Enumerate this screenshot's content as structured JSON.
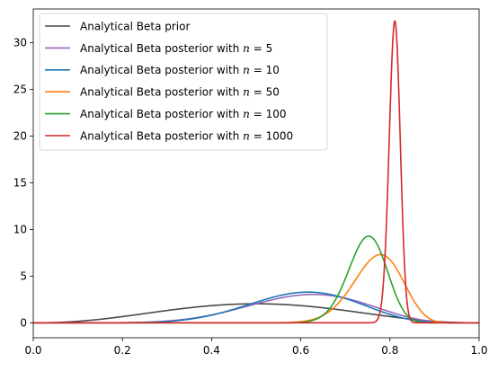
{
  "chart_data": {
    "type": "line",
    "title": "",
    "xlabel": "",
    "ylabel": "",
    "xlim": [
      0,
      1
    ],
    "ylim": [
      -1.6,
      33.6
    ],
    "xticks": [
      0.0,
      0.2,
      0.4,
      0.6,
      0.8,
      1.0
    ],
    "xtick_labels": [
      "0.0",
      "0.2",
      "0.4",
      "0.6",
      "0.8",
      "1.0"
    ],
    "yticks": [
      0,
      5,
      10,
      15,
      20,
      25,
      30
    ],
    "ytick_labels": [
      "0",
      "5",
      "10",
      "15",
      "20",
      "25",
      "30"
    ],
    "grid": false,
    "legend_position": "upper-left",
    "series": [
      {
        "name_prefix": "Analytical Beta prior",
        "n": "",
        "color": "#4a4a4a",
        "alpha": 3.5,
        "beta": 3.5
      },
      {
        "name_prefix": "Analytical Beta posterior with",
        "n": "5",
        "color": "#9467bd",
        "alpha": 8.6,
        "beta": 5.5
      },
      {
        "name_prefix": "Analytical Beta posterior with",
        "n": "10",
        "color": "#1f77b4",
        "alpha": 10.0,
        "beta": 6.6
      },
      {
        "name_prefix": "Analytical Beta posterior with",
        "n": "50",
        "color": "#ff7f0e",
        "alpha": 45.0,
        "beta": 13.5
      },
      {
        "name_prefix": "Analytical Beta posterior with",
        "n": "100",
        "color": "#2ca02c",
        "alpha": 76.0,
        "beta": 25.7
      },
      {
        "name_prefix": "Analytical Beta posterior with",
        "n": "1000",
        "color": "#d62728",
        "alpha": 816.0,
        "beta": 191.0
      }
    ]
  }
}
